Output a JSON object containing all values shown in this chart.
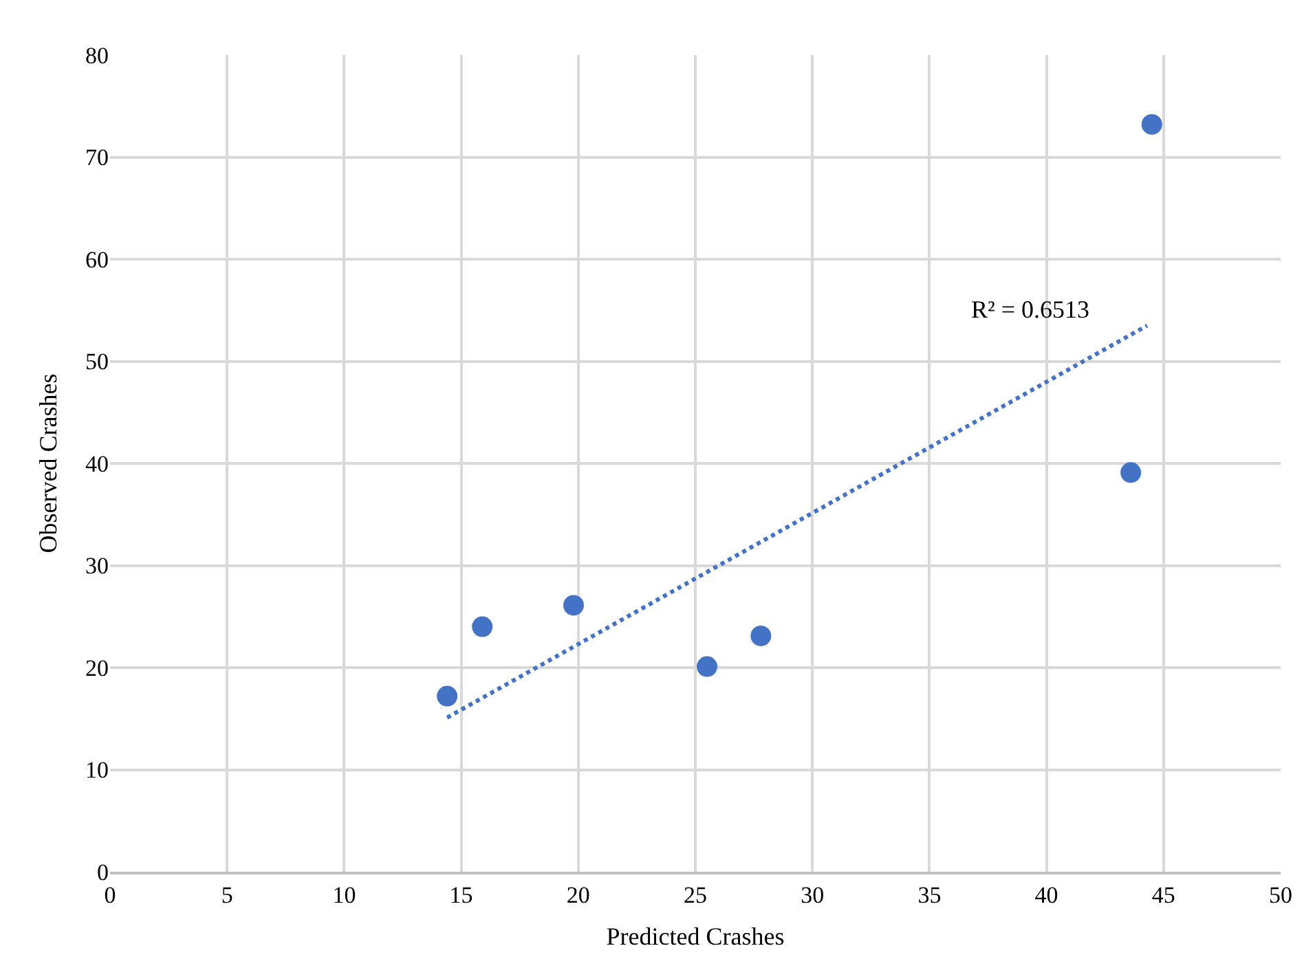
{
  "chart_data": {
    "type": "scatter",
    "xlabel": "Predicted Crashes",
    "ylabel": "Observed Crashes",
    "series": [
      {
        "color": "#4472c4",
        "marker": "circle",
        "x": [
          14.4,
          15.9,
          19.8,
          25.5,
          27.8,
          43.6,
          44.5
        ],
        "values": [
          17.2,
          24.0,
          26.1,
          20.1,
          23.1,
          39.1,
          73.2
        ]
      },
      {
        "type": "line",
        "color": "#4472c4",
        "line_style": "dotted",
        "x": [
          14.4,
          44.3
        ],
        "values": [
          15.1,
          53.5
        ]
      }
    ],
    "annotations": [
      "R² = 0.6513"
    ],
    "xlim": [
      0,
      50
    ],
    "xticks": [
      0,
      5,
      10,
      15,
      20,
      25,
      30,
      35,
      40,
      45,
      50
    ],
    "ylim": [
      0,
      80
    ],
    "yticks": [
      0,
      10,
      20,
      30,
      40,
      50,
      60,
      70,
      80
    ],
    "grid": true,
    "legend": false
  }
}
